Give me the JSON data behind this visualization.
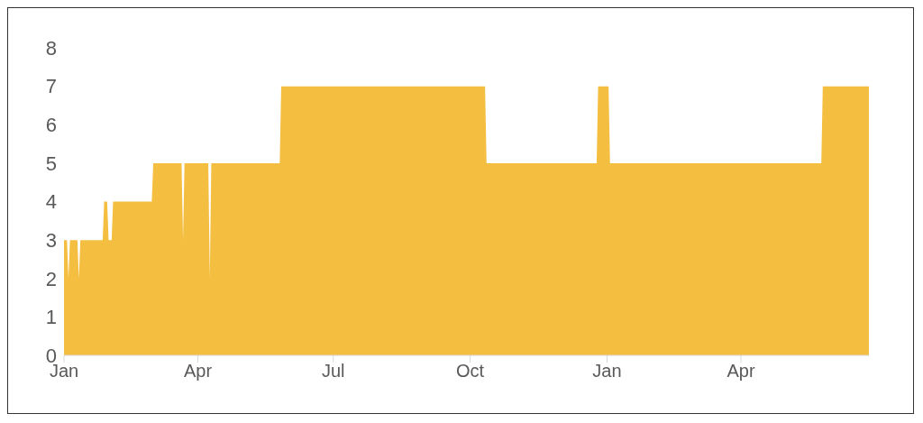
{
  "chart_data": {
    "type": "area",
    "categories": [
      "Jan",
      null,
      null,
      null,
      null,
      null,
      null,
      null,
      null,
      null,
      null,
      null,
      null,
      null,
      null,
      null,
      null,
      null,
      null,
      null,
      null,
      null,
      null,
      null,
      null,
      null,
      null,
      null,
      null,
      null,
      null,
      null,
      null,
      null,
      null,
      null,
      null,
      null,
      null,
      null,
      null,
      null,
      null,
      null,
      null,
      null,
      null,
      null,
      null,
      null,
      null,
      null,
      null,
      null,
      null,
      null,
      null,
      null,
      null,
      null,
      null,
      null,
      null,
      null,
      null,
      null,
      null,
      null,
      null,
      null,
      null,
      null,
      null,
      null,
      null,
      null,
      null,
      null,
      null,
      null,
      null,
      null,
      null,
      null,
      null,
      null,
      null,
      null,
      null,
      null,
      "Apr",
      null,
      null,
      null,
      null,
      null,
      null,
      null,
      null,
      null,
      null,
      null,
      null,
      null,
      null,
      null,
      null,
      null,
      null,
      null,
      null,
      null,
      null,
      null,
      null,
      null,
      null,
      null,
      null,
      null,
      null,
      null,
      null,
      null,
      null,
      null,
      null,
      null,
      null,
      null,
      null,
      null,
      null,
      null,
      null,
      null,
      null,
      null,
      null,
      null,
      null,
      null,
      null,
      null,
      null,
      null,
      null,
      null,
      null,
      null,
      null,
      null,
      null,
      null,
      null,
      null,
      null,
      null,
      null,
      null,
      null,
      null,
      null,
      null,
      null,
      null,
      null,
      null,
      null,
      null,
      null,
      null,
      null,
      null,
      null,
      null,
      null,
      null,
      null,
      null,
      null,
      "Jul",
      null,
      null,
      null,
      null,
      null,
      null,
      null,
      null,
      null,
      null,
      null,
      null,
      null,
      null,
      null,
      null,
      null,
      null,
      null,
      null,
      null,
      null,
      null,
      null,
      null,
      null,
      null,
      null,
      null,
      null,
      null,
      null,
      null,
      null,
      null,
      null,
      null,
      null,
      null,
      null,
      null,
      null,
      null,
      null,
      null,
      null,
      null,
      null,
      null,
      null,
      null,
      null,
      null,
      null,
      null,
      null,
      null,
      null,
      null,
      null,
      null,
      null,
      null,
      null,
      null,
      null,
      null,
      null,
      null,
      null,
      null,
      null,
      null,
      null,
      null,
      null,
      null,
      null,
      null,
      null,
      null,
      null,
      null,
      null,
      null,
      null,
      null,
      null,
      null,
      null,
      null,
      "Oct",
      null,
      null,
      null,
      null,
      null,
      null,
      null,
      null,
      null,
      null,
      null,
      null,
      null,
      null,
      null,
      null,
      null,
      null,
      null,
      null,
      null,
      null,
      null,
      null,
      null,
      null,
      null,
      null,
      null,
      null,
      null,
      null,
      null,
      null,
      null,
      null,
      null,
      null,
      null,
      null,
      null,
      null,
      null,
      null,
      null,
      null,
      null,
      null,
      null,
      null,
      null,
      null,
      null,
      null,
      null,
      null,
      null,
      null,
      null,
      null,
      null,
      null,
      null,
      null,
      null,
      null,
      null,
      null,
      null,
      null,
      null,
      null,
      null,
      null,
      null,
      null,
      null,
      null,
      null,
      null,
      null,
      null,
      null,
      null,
      null,
      null,
      null,
      null,
      null,
      null,
      null,
      "Jan",
      null,
      null,
      null,
      null,
      null,
      null,
      null,
      null,
      null,
      null,
      null,
      null,
      null,
      null,
      null,
      null,
      null,
      null,
      null,
      null,
      null,
      null,
      null,
      null,
      null,
      null,
      null,
      null,
      null,
      null,
      null,
      null,
      null,
      null,
      null,
      null,
      null,
      null,
      null,
      null,
      null,
      null,
      null,
      null,
      null,
      null,
      null,
      null,
      null,
      null,
      null,
      null,
      null,
      null,
      null,
      null,
      null,
      null,
      null,
      null,
      null,
      null,
      null,
      null,
      null,
      null,
      null,
      null,
      null,
      null,
      null,
      null,
      null,
      null,
      null,
      null,
      null,
      null,
      null,
      null,
      null,
      null,
      null,
      null,
      null,
      null,
      null,
      null,
      null,
      "Apr",
      null,
      null,
      null,
      null,
      null,
      null,
      null,
      null,
      null,
      null,
      null,
      null,
      null,
      null,
      null,
      null,
      null,
      null,
      null,
      null,
      null,
      null,
      null,
      null,
      null,
      null,
      null,
      null,
      null,
      null,
      null,
      null,
      null,
      null,
      null,
      null,
      null,
      null,
      null,
      null,
      null,
      null,
      null,
      null,
      null,
      null,
      null,
      null,
      null,
      null,
      null,
      null,
      null,
      null,
      null,
      null,
      null,
      null,
      null,
      null,
      null,
      null,
      null,
      null,
      null,
      null,
      null,
      null,
      null,
      null,
      null,
      null,
      null,
      null,
      null,
      null,
      null,
      null,
      null,
      null,
      null,
      null,
      null,
      null,
      null,
      null
    ],
    "series": [
      {
        "color": "#f4be41",
        "values": [
          3,
          3,
          3,
          2,
          3,
          3,
          3,
          3,
          3,
          3,
          2,
          3,
          3,
          3,
          3,
          3,
          3,
          3,
          3,
          3,
          3,
          3,
          3,
          3,
          3,
          3,
          3,
          4,
          4,
          4,
          3,
          3,
          3,
          4,
          4,
          4,
          4,
          4,
          4,
          4,
          4,
          4,
          4,
          4,
          4,
          4,
          4,
          4,
          4,
          4,
          4,
          4,
          4,
          4,
          4,
          4,
          4,
          4,
          4,
          4,
          5,
          5,
          5,
          5,
          5,
          5,
          5,
          5,
          5,
          5,
          5,
          5,
          5,
          5,
          5,
          5,
          5,
          5,
          5,
          5,
          3,
          5,
          5,
          5,
          5,
          5,
          5,
          5,
          5,
          5,
          5,
          5,
          5,
          5,
          5,
          5,
          5,
          5,
          2,
          5,
          5,
          5,
          5,
          5,
          5,
          5,
          5,
          5,
          5,
          5,
          5,
          5,
          5,
          5,
          5,
          5,
          5,
          5,
          5,
          5,
          5,
          5,
          5,
          5,
          5,
          5,
          5,
          5,
          5,
          5,
          5,
          5,
          5,
          5,
          5,
          5,
          5,
          5,
          5,
          5,
          5,
          5,
          5,
          5,
          5,
          5,
          7,
          7,
          7,
          7,
          7,
          7,
          7,
          7,
          7,
          7,
          7,
          7,
          7,
          7,
          7,
          7,
          7,
          7,
          7,
          7,
          7,
          7,
          7,
          7,
          7,
          7,
          7,
          7,
          7,
          7,
          7,
          7,
          7,
          7,
          7,
          7,
          7,
          7,
          7,
          7,
          7,
          7,
          7,
          7,
          7,
          7,
          7,
          7,
          7,
          7,
          7,
          7,
          7,
          7,
          7,
          7,
          7,
          7,
          7,
          7,
          7,
          7,
          7,
          7,
          7,
          7,
          7,
          7,
          7,
          7,
          7,
          7,
          7,
          7,
          7,
          7,
          7,
          7,
          7,
          7,
          7,
          7,
          7,
          7,
          7,
          7,
          7,
          7,
          7,
          7,
          7,
          7,
          7,
          7,
          7,
          7,
          7,
          7,
          7,
          7,
          7,
          7,
          7,
          7,
          7,
          7,
          7,
          7,
          7,
          7,
          7,
          7,
          7,
          7,
          7,
          7,
          7,
          7,
          7,
          7,
          7,
          7,
          7,
          7,
          7,
          7,
          7,
          7,
          7,
          7,
          7,
          7,
          7,
          7,
          7,
          7,
          7,
          7,
          5,
          5,
          5,
          5,
          5,
          5,
          5,
          5,
          5,
          5,
          5,
          5,
          5,
          5,
          5,
          5,
          5,
          5,
          5,
          5,
          5,
          5,
          5,
          5,
          5,
          5,
          5,
          5,
          5,
          5,
          5,
          5,
          5,
          5,
          5,
          5,
          5,
          5,
          5,
          5,
          5,
          5,
          5,
          5,
          5,
          5,
          5,
          5,
          5,
          5,
          5,
          5,
          5,
          5,
          5,
          5,
          5,
          5,
          5,
          5,
          5,
          5,
          5,
          5,
          5,
          5,
          5,
          5,
          5,
          5,
          5,
          5,
          5,
          5,
          5,
          7,
          7,
          7,
          7,
          7,
          7,
          7,
          7,
          5,
          5,
          5,
          5,
          5,
          5,
          5,
          5,
          5,
          5,
          5,
          5,
          5,
          5,
          5,
          5,
          5,
          5,
          5,
          5,
          5,
          5,
          5,
          5,
          5,
          5,
          5,
          5,
          5,
          5,
          5,
          5,
          5,
          5,
          5,
          5,
          5,
          5,
          5,
          5,
          5,
          5,
          5,
          5,
          5,
          5,
          5,
          5,
          5,
          5,
          5,
          5,
          5,
          5,
          5,
          5,
          5,
          5,
          5,
          5,
          5,
          5,
          5,
          5,
          5,
          5,
          5,
          5,
          5,
          5,
          5,
          5,
          5,
          5,
          5,
          5,
          5,
          5,
          5,
          5,
          5,
          5,
          5,
          5,
          5,
          5,
          5,
          5,
          5,
          5,
          5,
          5,
          5,
          5,
          5,
          5,
          5,
          5,
          5,
          5,
          5,
          5,
          5,
          5,
          5,
          5,
          5,
          5,
          5,
          5,
          5,
          5,
          5,
          5,
          5,
          5,
          5,
          5,
          5,
          5,
          5,
          5,
          5,
          5,
          5,
          5,
          5,
          5,
          5,
          5,
          5,
          5,
          5,
          5,
          5,
          5,
          5,
          5,
          5,
          5,
          5,
          5,
          5,
          7,
          7,
          7,
          7,
          7,
          7,
          7,
          7,
          7,
          7,
          7,
          7,
          7,
          7,
          7,
          7,
          7,
          7,
          7,
          7,
          7,
          7,
          7,
          7,
          7,
          7,
          7,
          7,
          7,
          7,
          7,
          7
        ]
      }
    ],
    "ylim": [
      0,
      8
    ],
    "yticks": [
      0,
      1,
      2,
      3,
      4,
      5,
      6,
      7,
      8
    ],
    "grid": false,
    "legend": false
  }
}
